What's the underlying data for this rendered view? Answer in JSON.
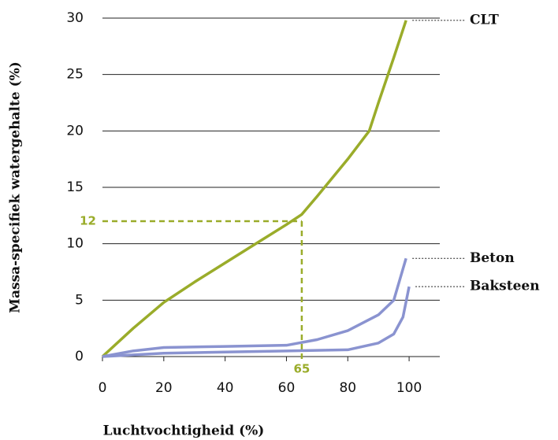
{
  "chart_data": {
    "type": "line",
    "x_label": "Luchtvochtigheid (%)",
    "y_label": "Massa-specifiek watergehalte (%)",
    "xlim": [
      0,
      110
    ],
    "ylim": [
      0,
      30
    ],
    "xticks": [
      0,
      20,
      40,
      60,
      80,
      100
    ],
    "yticks": [
      0,
      5,
      10,
      15,
      20,
      25,
      30
    ],
    "grid": true,
    "series": [
      {
        "name": "CLT",
        "color": "#9aac2a",
        "x": [
          0,
          10,
          20,
          30,
          40,
          50,
          60,
          65,
          70,
          80,
          87,
          90,
          95,
          99
        ],
        "values": [
          0,
          2.5,
          4.8,
          6.6,
          8.3,
          10,
          11.7,
          12.6,
          14.2,
          17.5,
          20,
          22.5,
          26.5,
          29.8
        ]
      },
      {
        "name": "Beton",
        "color": "#8a93d0",
        "x": [
          0,
          10,
          20,
          40,
          60,
          70,
          80,
          90,
          95,
          99
        ],
        "values": [
          0,
          0.5,
          0.8,
          0.9,
          1.0,
          1.5,
          2.3,
          3.7,
          5,
          8.7
        ]
      },
      {
        "name": "Baksteen",
        "color": "#8a93d0",
        "x": [
          0,
          20,
          40,
          60,
          80,
          90,
          95,
          98,
          100
        ],
        "values": [
          0,
          0.3,
          0.4,
          0.5,
          0.6,
          1.2,
          2,
          3.5,
          6.2
        ]
      }
    ],
    "annotation": {
      "x": 65,
      "y": 12,
      "color": "#9aac2a"
    }
  }
}
